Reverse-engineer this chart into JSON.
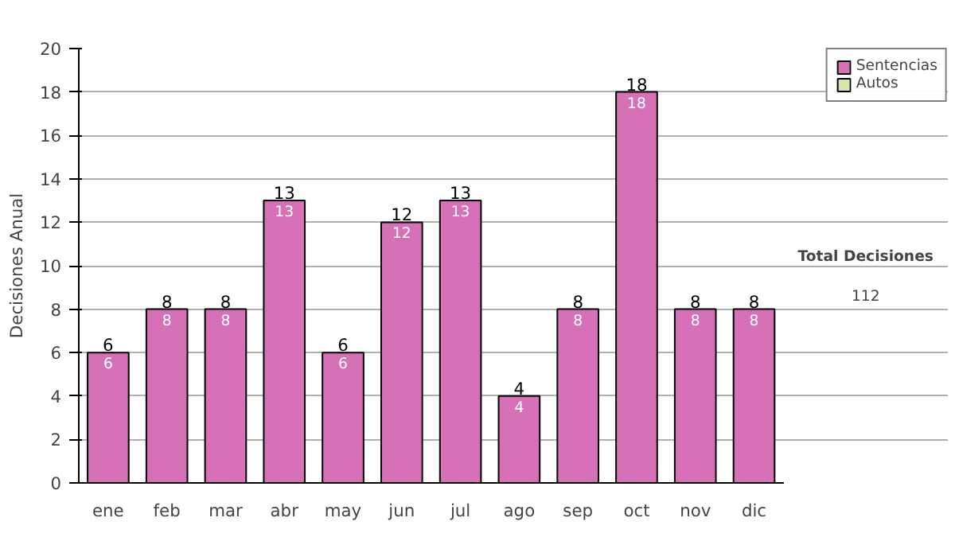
{
  "chart_data": {
    "type": "bar",
    "ylabel": "Decisiones Anual",
    "stacked": true,
    "categories": [
      "ene",
      "feb",
      "mar",
      "abr",
      "may",
      "jun",
      "jul",
      "ago",
      "sep",
      "oct",
      "nov",
      "dic"
    ],
    "series": [
      {
        "name": "Sentencias",
        "color": "#d671b8",
        "values": [
          6,
          8,
          8,
          13,
          6,
          12,
          13,
          4,
          8,
          18,
          8,
          8
        ],
        "value_labels": [
          "6",
          "8",
          "8",
          "13",
          "6",
          "12",
          "13",
          "4",
          "8",
          "18",
          "8",
          "8"
        ]
      },
      {
        "name": "Autos",
        "color": "#d6e8a8",
        "values": [
          null,
          null,
          null,
          null,
          null,
          null,
          null,
          null,
          null,
          null,
          null,
          null
        ]
      }
    ],
    "totals": [
      "6",
      "8",
      "8",
      "13",
      "6",
      "12",
      "13",
      "4",
      "8",
      "18",
      "8",
      "8"
    ],
    "ylim": [
      0,
      20
    ],
    "yticks": [
      0,
      2,
      4,
      6,
      8,
      10,
      12,
      14,
      16,
      18,
      20
    ],
    "grid": "y",
    "legend": "right",
    "annotations": [
      "Total Decisiones",
      "112"
    ]
  }
}
